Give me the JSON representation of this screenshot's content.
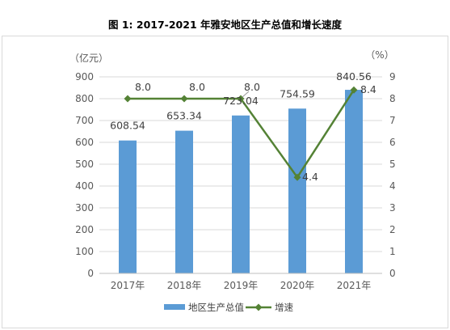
{
  "title": "图 1: 2017-2021 年雅安地区生产总值和增长速度",
  "chart_data": {
    "type": "bar",
    "categories": [
      "2017年",
      "2018年",
      "2019年",
      "2020年",
      "2021年"
    ],
    "series": [
      {
        "name": "地区生产总值",
        "type": "bar",
        "axis": "left",
        "values": [
          608.54,
          653.34,
          723.04,
          754.59,
          840.56
        ],
        "labels": [
          "608.54",
          "653.34",
          "723.04",
          "754.59",
          "840.56"
        ]
      },
      {
        "name": "增速",
        "type": "line",
        "axis": "right",
        "values": [
          8.0,
          8.0,
          8.0,
          4.4,
          8.4
        ],
        "labels": [
          "8.0",
          "8.0",
          "8.0",
          "4.4",
          "8.4"
        ]
      }
    ],
    "y_left": {
      "unit": "（亿元）",
      "range": [
        0,
        900
      ],
      "ticks": [
        "0",
        "100",
        "200",
        "300",
        "400",
        "500",
        "600",
        "700",
        "800",
        "900"
      ]
    },
    "y_right": {
      "unit": "（%）",
      "range": [
        0,
        9
      ],
      "ticks": [
        "0",
        "1",
        "2",
        "3",
        "4",
        "5",
        "6",
        "7",
        "8",
        "9"
      ]
    },
    "grid": true,
    "legend_position": "bottom",
    "colors": {
      "bar": "#5b9bd5",
      "line": "#548235",
      "grid": "#d9d9d9",
      "axis_text": "#595959"
    }
  }
}
